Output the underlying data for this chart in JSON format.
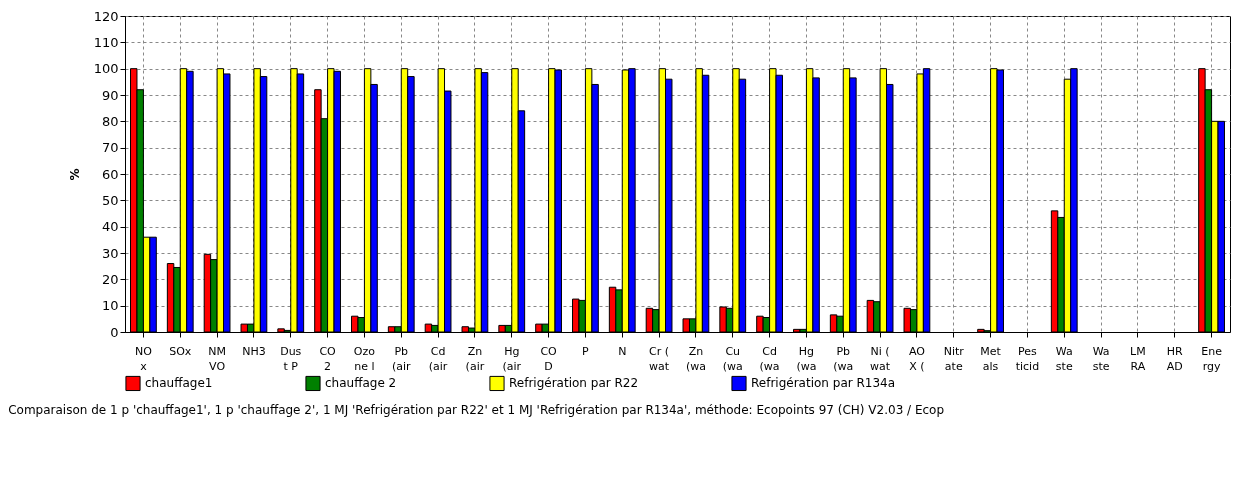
{
  "chart_data": {
    "type": "bar",
    "ylabel": "%",
    "categories": [
      "NO\nx",
      "SOx",
      "NM\nVO",
      "NH3",
      "Dus\nt P",
      "CO\n2",
      "Ozo\nne l",
      "Pb\n(air",
      "Cd\n(air",
      "Zn\n(air",
      "Hg\n(air",
      "CO\nD",
      "P",
      "N",
      "Cr (\nwat",
      "Zn\n(wa",
      "Cu\n(wa",
      "Cd\n(wa",
      "Hg\n(wa",
      "Pb\n(wa",
      "Ni (\nwat",
      "AO\nX (",
      "Nitr\nate",
      "Met\nals",
      "Pes\nticid",
      "Wa\nste",
      "Wa\nste",
      "LM\nRA",
      "HR\nAD",
      "Ene\nrgy"
    ],
    "series": [
      {
        "name": "chauffage1",
        "color": "#ff0000",
        "values": [
          100,
          26,
          29.5,
          3,
          1.2,
          92,
          6,
          2,
          3,
          2,
          2.5,
          3,
          12.5,
          17,
          9,
          5,
          9.5,
          6,
          1,
          6.5,
          12,
          9,
          null,
          1,
          null,
          46,
          null,
          null,
          null,
          100
        ]
      },
      {
        "name": "chauffage 2",
        "color": "#008000",
        "values": [
          92,
          24.5,
          27.5,
          3,
          0.6,
          81,
          5.5,
          2,
          2.5,
          1.5,
          2.5,
          3,
          12,
          16,
          8.5,
          5,
          9,
          5.5,
          1,
          6,
          11.5,
          8.5,
          null,
          0.5,
          null,
          43.5,
          null,
          null,
          null,
          92
        ]
      },
      {
        "name": "Refrigération par R22",
        "color": "#ffff00",
        "values": [
          36,
          100,
          100,
          100,
          100,
          100,
          100,
          100,
          100,
          100,
          100,
          100,
          100,
          99.5,
          100,
          100,
          100,
          100,
          100,
          100,
          100,
          98,
          null,
          100,
          null,
          96,
          null,
          null,
          null,
          80
        ]
      },
      {
        "name": "Refrigération par R134a",
        "color": "#0000ff",
        "values": [
          36,
          99,
          98,
          97,
          98,
          99,
          94,
          97,
          91.5,
          98.5,
          84,
          99.5,
          94,
          100,
          96,
          97.5,
          96,
          97.5,
          96.5,
          96.5,
          94,
          100,
          null,
          99.5,
          null,
          100,
          null,
          null,
          null,
          80
        ]
      }
    ],
    "ylim": [
      0,
      120
    ],
    "yticks": [
      0,
      10,
      20,
      30,
      40,
      50,
      60,
      70,
      80,
      90,
      100,
      110,
      120
    ],
    "grid": true,
    "legend": "bottom",
    "annotations": [
      "Comparaison de 1 p 'chauffage1', 1 p 'chauffage 2', 1 MJ 'Refrigération par R22' et 1 MJ 'Refrigération par R134a', méthode: Ecopoints 97 (CH) V2.03 / Ecop"
    ]
  }
}
